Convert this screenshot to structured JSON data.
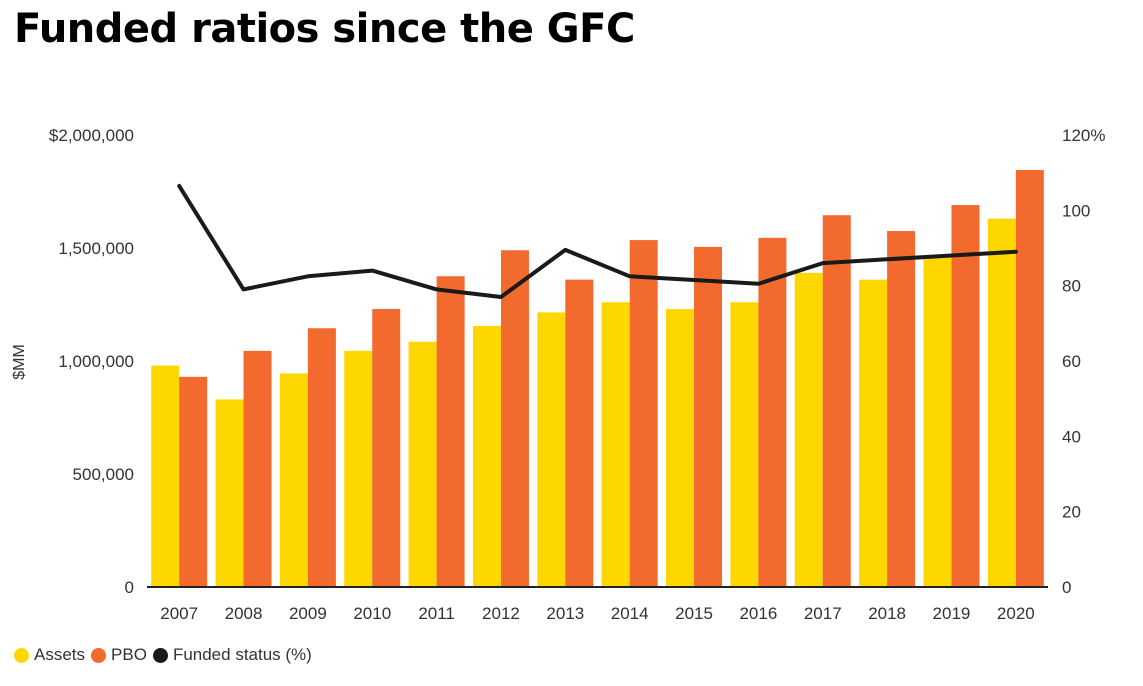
{
  "title": "Funded ratios since the GFC",
  "colors": {
    "assets": "#FFD700",
    "pbo": "#F26A2E",
    "funded": "#1a1a1a"
  },
  "chart_data": {
    "type": "bar",
    "title": "Funded ratios since the GFC",
    "ylabel": "$MM",
    "categories": [
      "2007",
      "2008",
      "2009",
      "2010",
      "2011",
      "2012",
      "2013",
      "2014",
      "2015",
      "2016",
      "2017",
      "2018",
      "2019",
      "2020"
    ],
    "series": [
      {
        "name": "Assets",
        "type": "bar",
        "axis": "left",
        "values": [
          980000,
          830000,
          945000,
          1045000,
          1085000,
          1155000,
          1215000,
          1260000,
          1230000,
          1260000,
          1390000,
          1360000,
          1460000,
          1630000
        ]
      },
      {
        "name": "PBO",
        "type": "bar",
        "axis": "left",
        "values": [
          930000,
          1045000,
          1145000,
          1230000,
          1375000,
          1490000,
          1360000,
          1535000,
          1505000,
          1545000,
          1645000,
          1575000,
          1690000,
          1845000
        ]
      },
      {
        "name": "Funded status (%)",
        "type": "line",
        "axis": "right",
        "values": [
          106.5,
          79,
          82.5,
          84,
          79,
          77,
          89.5,
          82.5,
          81.5,
          80.5,
          86,
          87,
          88,
          89
        ]
      }
    ],
    "y_left": {
      "min": 0,
      "max": 2000000,
      "ticks": [
        0,
        500000,
        1000000,
        1500000,
        2000000
      ],
      "tick_labels": [
        "0",
        "500,000",
        "1,000,000",
        "1,500,000",
        "$2,000,000"
      ]
    },
    "y_right": {
      "min": 0,
      "max": 120,
      "ticks": [
        0,
        20,
        40,
        60,
        80,
        100,
        120
      ],
      "tick_labels": [
        "0",
        "20",
        "40",
        "60",
        "80",
        "100",
        "120%"
      ]
    },
    "grid": false,
    "legend": {
      "placement": "bottom-left",
      "items": [
        {
          "label": "Assets"
        },
        {
          "label": "PBO"
        },
        {
          "label": "Funded status (%)"
        }
      ]
    }
  }
}
